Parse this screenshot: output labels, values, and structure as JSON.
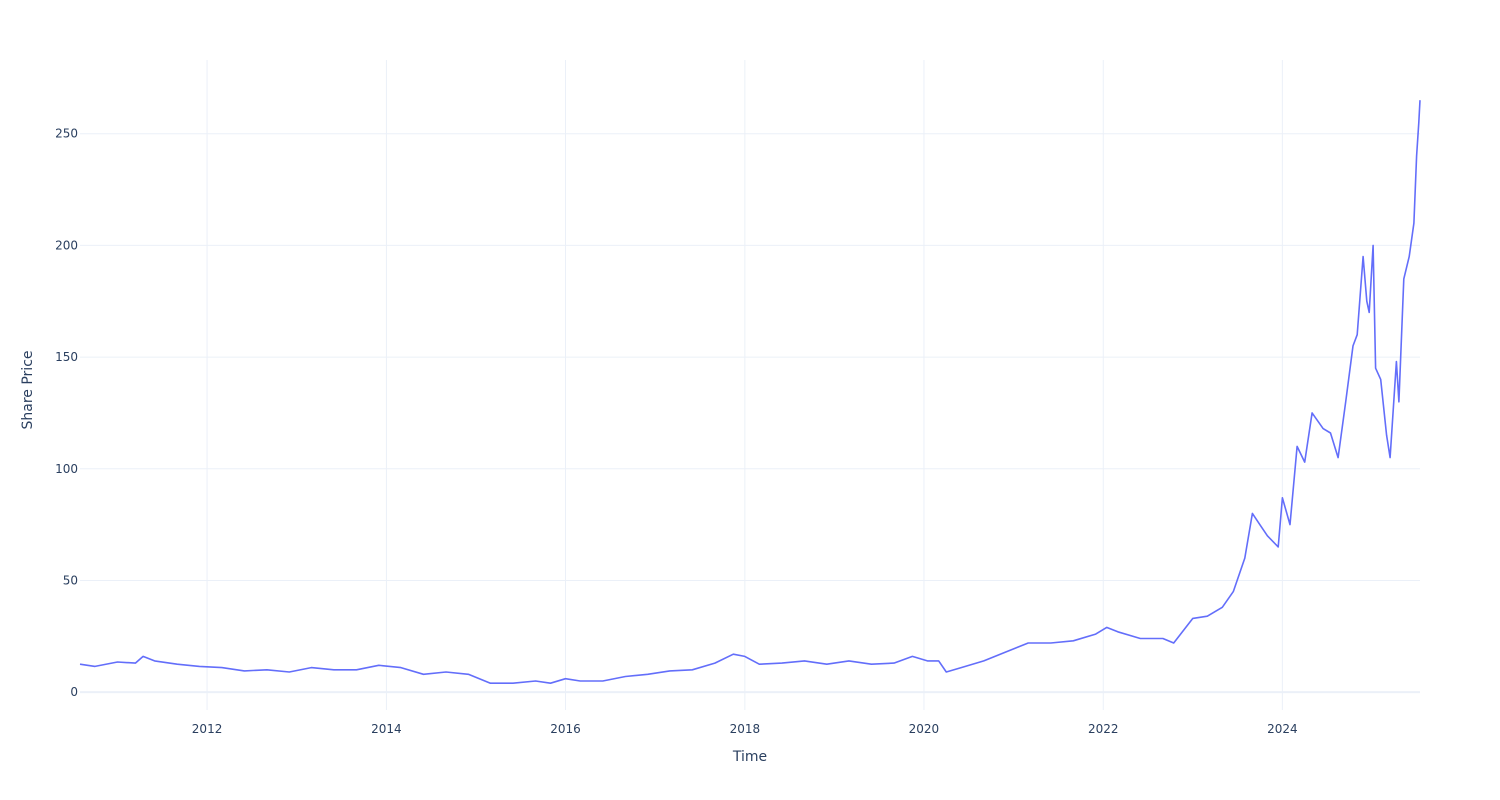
{
  "chart_data": {
    "type": "line",
    "title": "",
    "xlabel": "Time",
    "ylabel": "Share Price",
    "xlim": [
      "2010-08-01",
      "2025-07-15"
    ],
    "ylim": [
      -8,
      283
    ],
    "x_ticks": [
      "2012",
      "2014",
      "2016",
      "2018",
      "2020",
      "2022",
      "2024"
    ],
    "y_ticks": [
      0,
      50,
      100,
      150,
      200,
      250
    ],
    "grid": true,
    "legend": "none",
    "colors": {
      "line": "#636efa",
      "grid": "#ebf0f8",
      "text": "#2a3f5f"
    },
    "series": [
      {
        "x": [
          "2010-08-01",
          "2010-10-01",
          "2011-01-01",
          "2011-03-15",
          "2011-04-15",
          "2011-06-01",
          "2011-09-01",
          "2011-12-01",
          "2012-03-01",
          "2012-06-01",
          "2012-09-01",
          "2012-12-01",
          "2013-03-01",
          "2013-06-01",
          "2013-09-01",
          "2013-12-01",
          "2014-03-01",
          "2014-06-01",
          "2014-09-01",
          "2014-12-01",
          "2015-03-01",
          "2015-06-01",
          "2015-09-01",
          "2015-11-01",
          "2016-01-01",
          "2016-03-01",
          "2016-06-01",
          "2016-09-01",
          "2016-12-01",
          "2017-03-01",
          "2017-06-01",
          "2017-09-01",
          "2017-11-15",
          "2018-01-01",
          "2018-03-01",
          "2018-06-01",
          "2018-09-01",
          "2018-12-01",
          "2019-03-01",
          "2019-06-01",
          "2019-09-01",
          "2019-11-15",
          "2020-01-15",
          "2020-03-01",
          "2020-04-01",
          "2020-06-01",
          "2020-09-01",
          "2020-12-01",
          "2021-03-01",
          "2021-06-01",
          "2021-09-01",
          "2021-12-01",
          "2022-01-15",
          "2022-03-01",
          "2022-06-01",
          "2022-09-01",
          "2022-10-15",
          "2023-01-01",
          "2023-03-01",
          "2023-05-01",
          "2023-06-15",
          "2023-08-01",
          "2023-09-01",
          "2023-10-01",
          "2023-11-01",
          "2023-12-15",
          "2024-01-01",
          "2024-02-01",
          "2024-03-01",
          "2024-04-01",
          "2024-05-01",
          "2024-06-15",
          "2024-07-15",
          "2024-08-15",
          "2024-09-15",
          "2024-10-15",
          "2024-11-01",
          "2024-11-25",
          "2024-12-10",
          "2024-12-20",
          "2025-01-05",
          "2025-01-15",
          "2025-02-05",
          "2025-03-01",
          "2025-03-15",
          "2025-04-10",
          "2025-04-20",
          "2025-05-10",
          "2025-06-01",
          "2025-06-20",
          "2025-07-01",
          "2025-07-10",
          "2025-07-15"
        ],
        "y": [
          12.5,
          11.5,
          13.5,
          13,
          16,
          14,
          12.5,
          11.5,
          11,
          9.5,
          10,
          9,
          11,
          10,
          10,
          12,
          11,
          8,
          9,
          8,
          4,
          4,
          5,
          4,
          6,
          5,
          5,
          7,
          8,
          9.5,
          10,
          13,
          17,
          16,
          12.5,
          13,
          14,
          12.5,
          14,
          12.5,
          13,
          16,
          14,
          14,
          9,
          11,
          14,
          18,
          22,
          22,
          23,
          26,
          29,
          27,
          24,
          24,
          22,
          33,
          34,
          38,
          45,
          60,
          80,
          75,
          70,
          65,
          87,
          75,
          110,
          103,
          125,
          118,
          116,
          105,
          130,
          155,
          160,
          195,
          175,
          170,
          200,
          145,
          140,
          115,
          105,
          148,
          130,
          185,
          195,
          210,
          240,
          255,
          265
        ]
      }
    ]
  }
}
